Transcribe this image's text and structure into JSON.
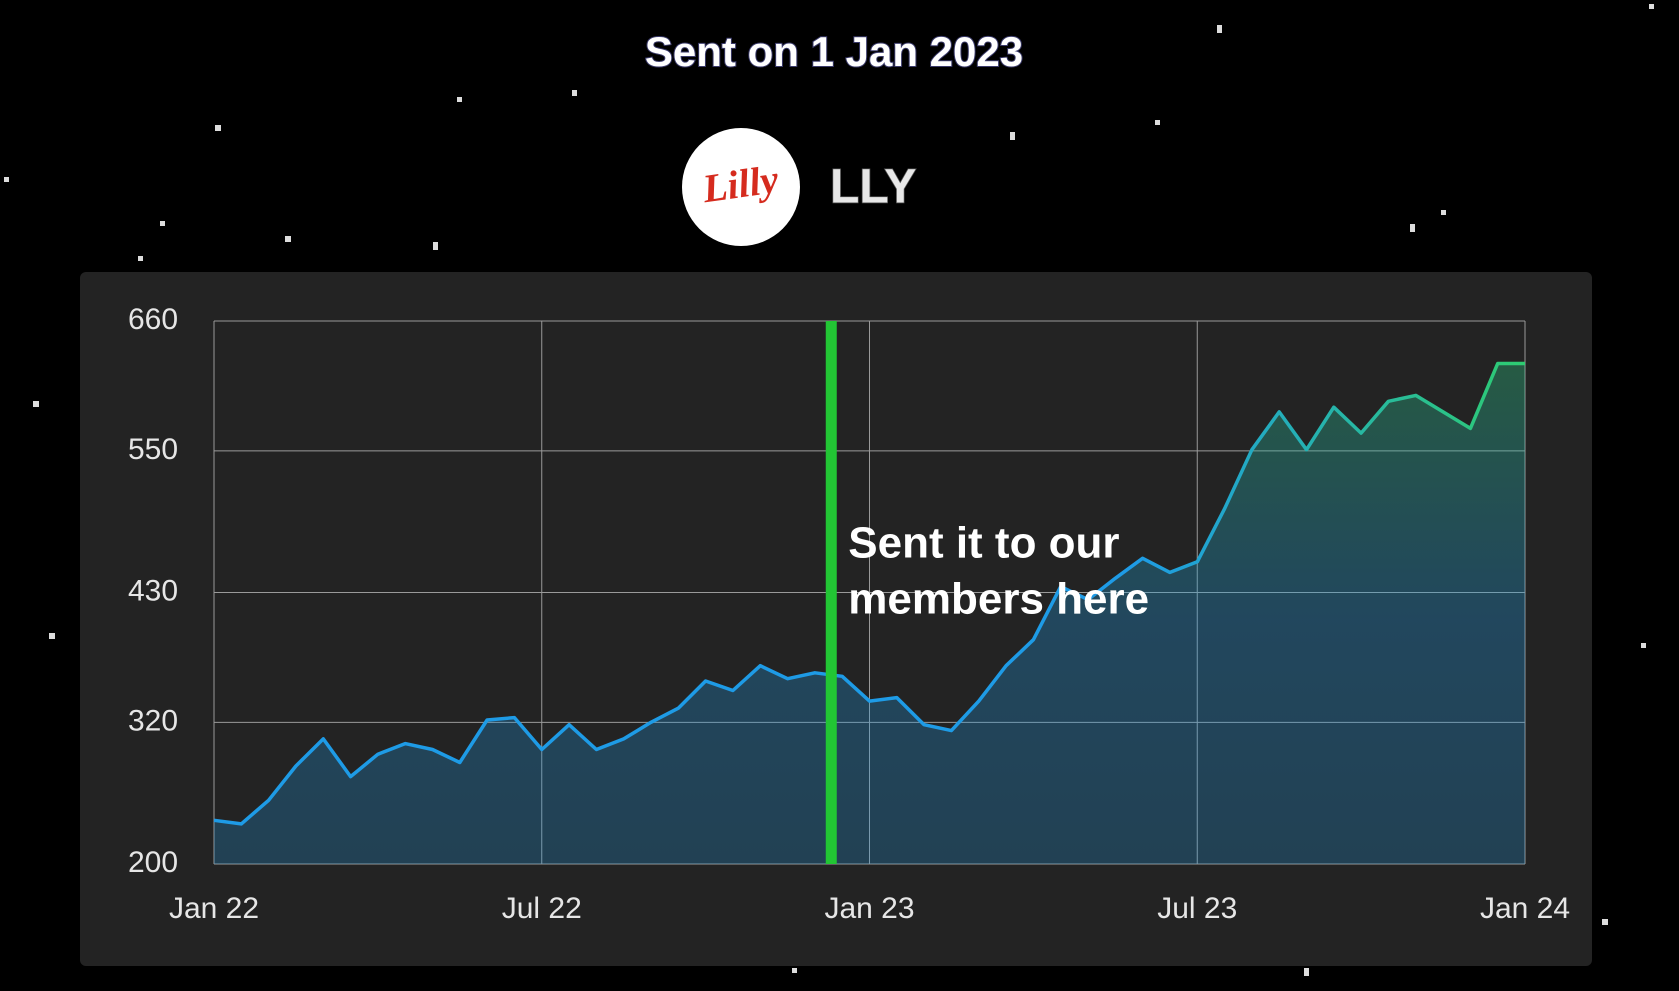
{
  "header": {
    "title": "Sent on 1 Jan 2023"
  },
  "logo": {
    "text": "Lilly"
  },
  "ticker": "LLY",
  "chart_data": {
    "type": "line",
    "x": [
      0,
      0.5,
      1,
      1.5,
      2,
      2.5,
      3,
      3.5,
      4,
      4.5,
      5,
      5.5,
      6,
      6.5,
      7,
      7.5,
      8,
      8.5,
      9,
      9.5,
      10,
      10.5,
      11,
      11.5,
      12,
      12.5,
      13,
      13.5,
      14,
      14.5,
      15,
      15.5,
      16,
      16.5,
      17,
      17.5,
      18,
      18.5,
      19,
      19.5,
      20,
      20.5,
      21,
      21.5,
      22,
      22.5,
      23,
      23.5,
      24
    ],
    "values": [
      237,
      234,
      254,
      283,
      306,
      274,
      293,
      302,
      297,
      286,
      322,
      324,
      297,
      318,
      297,
      306,
      320,
      332,
      355,
      347,
      368,
      357,
      362,
      359,
      338,
      341,
      318,
      313,
      338,
      368,
      390,
      435,
      424,
      442,
      459,
      447,
      456,
      501,
      551,
      583,
      551,
      587,
      565,
      592,
      597,
      583,
      569,
      624,
      624
    ],
    "color": "#1e9be6",
    "gradient_color": "#2ecc71",
    "xlim": [
      0,
      24
    ],
    "xticks": [
      {
        "value": 0,
        "label": "Jan 22"
      },
      {
        "value": 6,
        "label": "Jul 22"
      },
      {
        "value": 12,
        "label": "Jan 23"
      },
      {
        "value": 18,
        "label": "Jul 23"
      },
      {
        "value": 24,
        "label": "Jan 24"
      }
    ],
    "ylim": [
      200,
      660
    ],
    "yticks": [
      200,
      320,
      430,
      550,
      660
    ],
    "grid": true,
    "annotation": {
      "lines": [
        "Sent it to our",
        "members here"
      ],
      "x": 11.3,
      "color": "#22c634"
    }
  }
}
